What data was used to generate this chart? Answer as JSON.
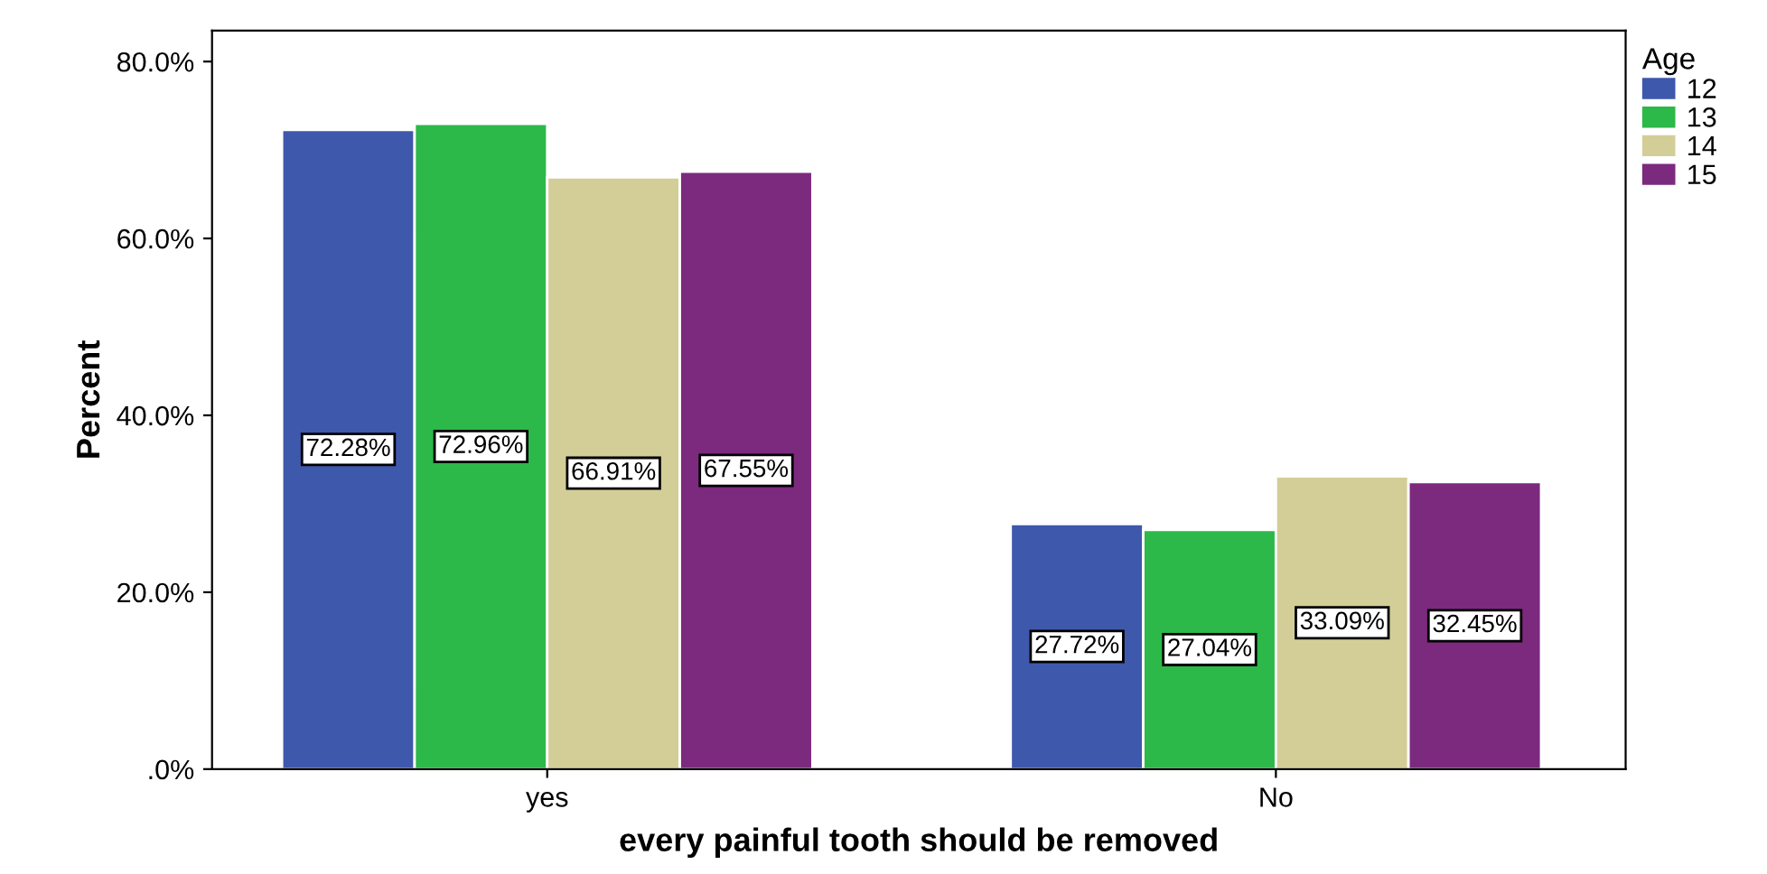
{
  "chart_data": {
    "type": "bar",
    "xlabel": "every painful tooth should be removed",
    "ylabel": "Percent",
    "legend_title": "Age",
    "legend": "top right",
    "grid": false,
    "categories": [
      "yes",
      "No"
    ],
    "ylim": [
      0,
      83.5
    ],
    "yticks": [
      {
        "value": 0,
        "label": ".0%"
      },
      {
        "value": 20,
        "label": "20.0%"
      },
      {
        "value": 40,
        "label": "40.0%"
      },
      {
        "value": 60,
        "label": "60.0%"
      },
      {
        "value": 80,
        "label": "80.0%"
      }
    ],
    "series": [
      {
        "name": "12",
        "color": "#3e58ac",
        "values": [
          72.28,
          27.72
        ],
        "value_labels": [
          "72.28%",
          "27.72%"
        ]
      },
      {
        "name": "13",
        "color": "#2db84a",
        "values": [
          72.96,
          27.04
        ],
        "value_labels": [
          "72.96%",
          "27.04%"
        ]
      },
      {
        "name": "14",
        "color": "#d3ce97",
        "values": [
          66.91,
          33.09
        ],
        "value_labels": [
          "66.91%",
          "33.09%"
        ]
      },
      {
        "name": "15",
        "color": "#7b2a7e",
        "values": [
          67.55,
          32.45
        ],
        "value_labels": [
          "67.55%",
          "32.45%"
        ]
      }
    ]
  }
}
